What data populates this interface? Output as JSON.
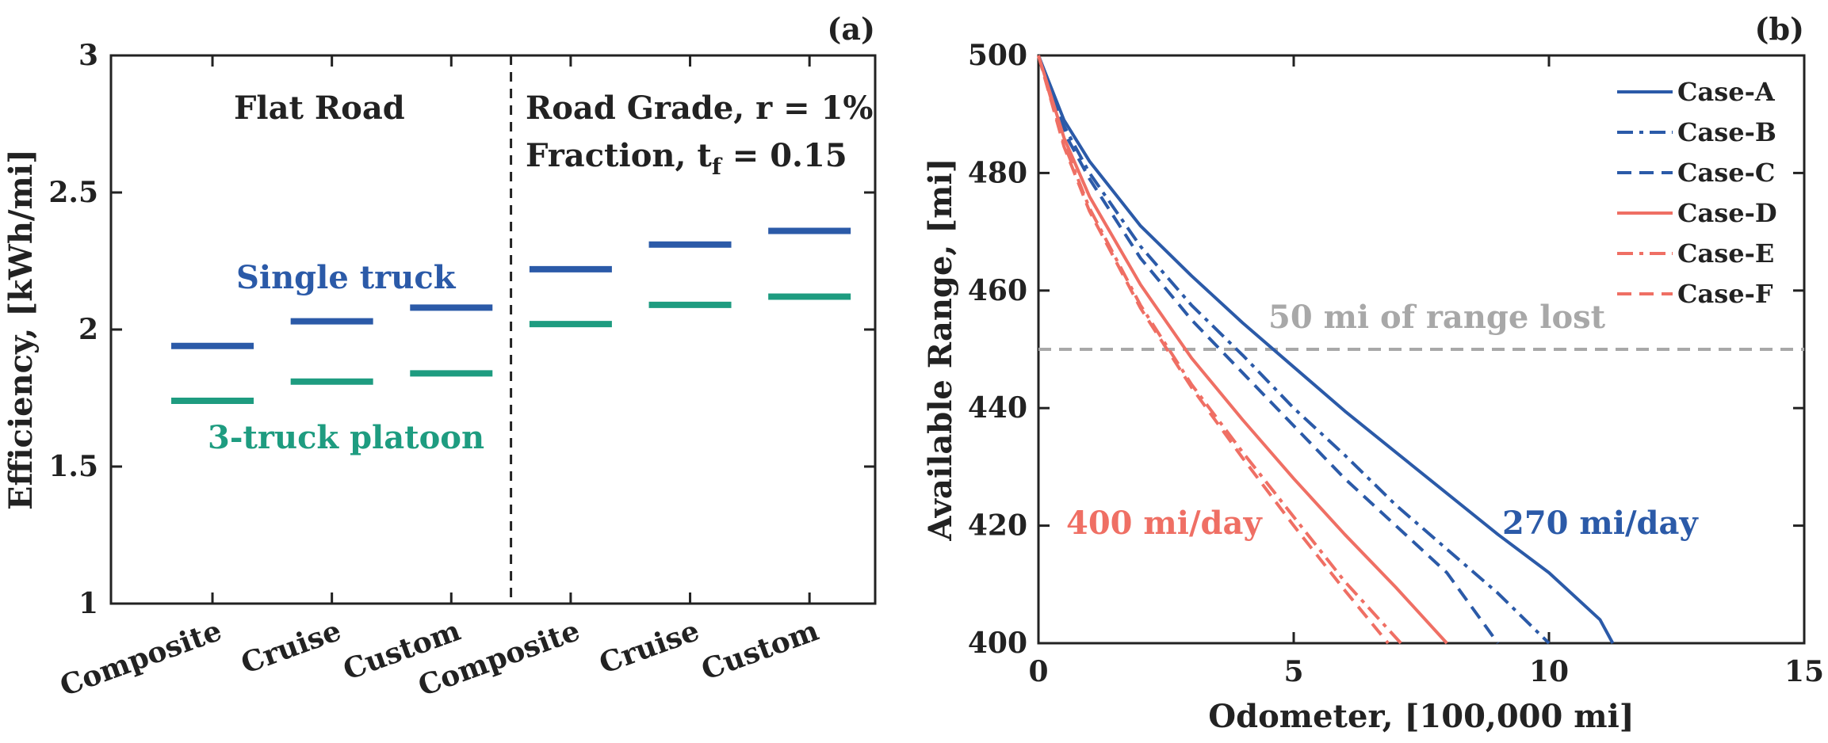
{
  "chart_data": [
    {
      "panel": "(a)",
      "type": "scatter",
      "ylabel": "Efficiency, [kWh/mi]",
      "ylim": [
        1,
        3
      ],
      "yticks": [
        "1",
        "1.5",
        "2",
        "2.5",
        "3"
      ],
      "categories": [
        "Composite",
        "Cruise",
        "Custom",
        "Composite",
        "Cruise",
        "Custom"
      ],
      "sections": [
        {
          "label": "Flat Road",
          "lines": [
            "Flat Road"
          ]
        },
        {
          "label": "Road Grade / Fraction",
          "lines": [
            "Road Grade, r = 1%",
            "Fraction, t",
            "f",
            " = 0.15"
          ]
        }
      ],
      "series": [
        {
          "name": "Single truck",
          "color": "#2b5aa8",
          "values": [
            1.94,
            2.03,
            2.08,
            2.22,
            2.31,
            2.36
          ]
        },
        {
          "name": "3-truck platoon",
          "color": "#1e9c80",
          "values": [
            1.74,
            1.81,
            1.84,
            2.02,
            2.09,
            2.12
          ]
        }
      ]
    },
    {
      "panel": "(b)",
      "type": "line",
      "xlabel": "Odometer, [100,000 mi]",
      "ylabel": "Available Range, [mi]",
      "xlim": [
        0,
        15
      ],
      "ylim": [
        400,
        500
      ],
      "xticks": [
        "0",
        "5",
        "10",
        "15"
      ],
      "yticks": [
        "400",
        "420",
        "440",
        "460",
        "480",
        "500"
      ],
      "reference_line": {
        "y": 450,
        "label": "50 mi of range lost",
        "color": "#a8a8a8"
      },
      "annotations": [
        {
          "text": "400 mi/day",
          "color": "#ef6f64"
        },
        {
          "text": "270 mi/day",
          "color": "#2b5aa8"
        }
      ],
      "legend_position": "top-right",
      "series": [
        {
          "name": "Case-A",
          "color": "#2b5aa8",
          "dash": "solid",
          "x": [
            0,
            0.5,
            1,
            2,
            3,
            4,
            5,
            6,
            7,
            8,
            9,
            10,
            11,
            11.25
          ],
          "y": [
            500,
            489,
            482,
            471,
            462.5,
            454.5,
            447,
            439.5,
            432.5,
            425.5,
            418.5,
            412,
            404,
            400
          ]
        },
        {
          "name": "Case-B",
          "color": "#2b5aa8",
          "dash": "dashdot",
          "x": [
            0,
            0.5,
            1,
            2,
            3,
            4,
            5,
            6,
            7,
            8,
            9,
            10
          ],
          "y": [
            500,
            488,
            480,
            467.5,
            457.5,
            449,
            440,
            432,
            423.5,
            416,
            408.5,
            400
          ]
        },
        {
          "name": "Case-C",
          "color": "#2b5aa8",
          "dash": "dashed",
          "x": [
            0,
            0.5,
            1,
            2,
            3,
            4,
            5,
            6,
            7,
            8,
            9
          ],
          "y": [
            500,
            487,
            479,
            465.5,
            455,
            446,
            437,
            428,
            420,
            412,
            400
          ]
        },
        {
          "name": "Case-D",
          "color": "#ef6f64",
          "dash": "solid",
          "x": [
            0,
            0.5,
            1,
            2,
            3,
            4,
            5,
            6,
            7,
            8
          ],
          "y": [
            500,
            486,
            476,
            461,
            448.5,
            438,
            428,
            418.5,
            409.5,
            400
          ]
        },
        {
          "name": "Case-E",
          "color": "#ef6f64",
          "dash": "dashdot",
          "x": [
            0,
            0.5,
            1,
            2,
            3,
            4,
            5,
            6,
            7.1
          ],
          "y": [
            500,
            485,
            474,
            457.5,
            444,
            432.5,
            421.5,
            410.5,
            400
          ]
        },
        {
          "name": "Case-F",
          "color": "#ef6f64",
          "dash": "dashed",
          "x": [
            0,
            0.5,
            1,
            2,
            3,
            4,
            5,
            6,
            6.85
          ],
          "y": [
            500,
            484.5,
            473.5,
            457,
            443.5,
            431.5,
            420,
            409,
            400
          ]
        }
      ]
    }
  ]
}
